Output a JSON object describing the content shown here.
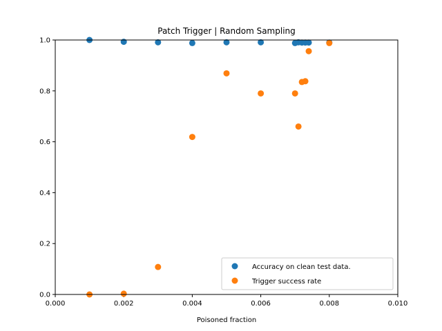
{
  "chart_data": {
    "type": "scatter",
    "title": "Patch Trigger | Random Sampling",
    "xlabel": "Poisoned fraction",
    "ylabel": "",
    "xlim": [
      0.0,
      0.01
    ],
    "ylim": [
      0.0,
      1.0
    ],
    "x_ticks": [
      "0.000",
      "0.002",
      "0.004",
      "0.006",
      "0.008",
      "0.010"
    ],
    "y_ticks": [
      "0.0",
      "0.2",
      "0.4",
      "0.6",
      "0.8",
      "1.0"
    ],
    "grid": false,
    "legend_position": "lower-right",
    "series": [
      {
        "name": "Accuracy on clean test data.",
        "color": "#1f77b4",
        "points": [
          [
            0.001,
            1.0
          ],
          [
            0.002,
            0.993
          ],
          [
            0.003,
            0.991
          ],
          [
            0.004,
            0.988
          ],
          [
            0.005,
            0.991
          ],
          [
            0.006,
            0.991
          ],
          [
            0.007,
            0.988
          ],
          [
            0.0071,
            0.991
          ],
          [
            0.0072,
            0.99
          ],
          [
            0.0073,
            0.99
          ],
          [
            0.0074,
            0.99
          ],
          [
            0.008,
            0.99
          ]
        ]
      },
      {
        "name": "Trigger success rate",
        "color": "#ff7f0e",
        "points": [
          [
            0.001,
            0.0
          ],
          [
            0.002,
            0.003
          ],
          [
            0.003,
            0.108
          ],
          [
            0.004,
            0.619
          ],
          [
            0.005,
            0.869
          ],
          [
            0.006,
            0.79
          ],
          [
            0.007,
            0.79
          ],
          [
            0.0071,
            0.66
          ],
          [
            0.0072,
            0.835
          ],
          [
            0.0073,
            0.838
          ],
          [
            0.0074,
            0.956
          ],
          [
            0.008,
            0.988
          ]
        ]
      }
    ]
  }
}
